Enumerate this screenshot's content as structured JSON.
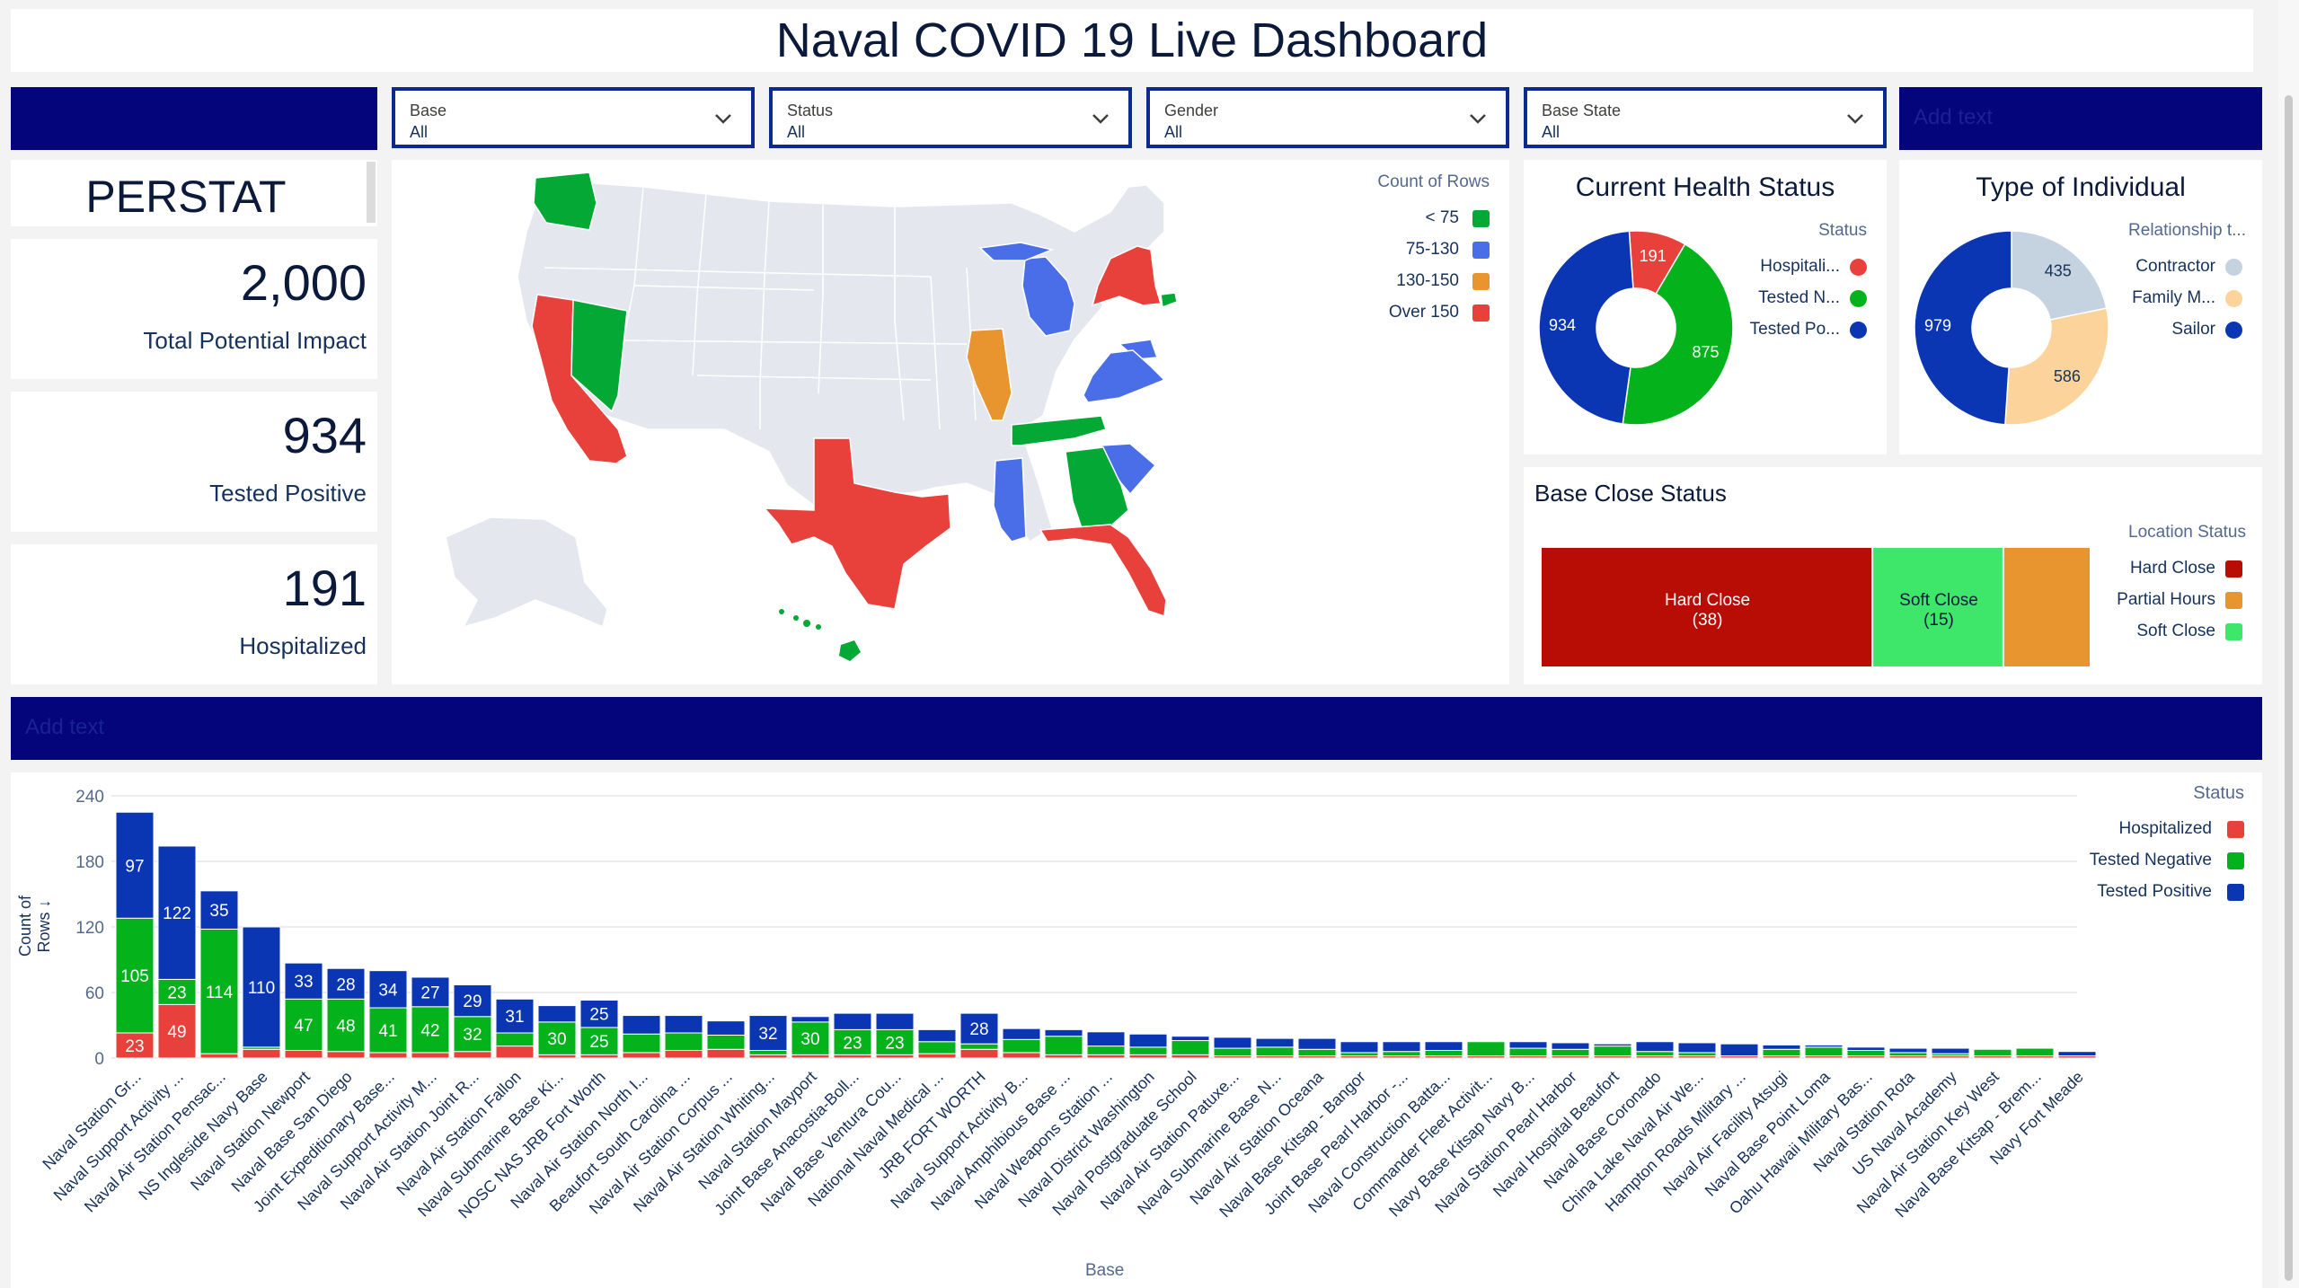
{
  "page": {
    "title": "Naval COVID 19 Live Dashboard"
  },
  "filters": [
    {
      "label": "Base",
      "value": "All"
    },
    {
      "label": "Status",
      "value": "All"
    },
    {
      "label": "Gender",
      "value": "All"
    },
    {
      "label": "Base State",
      "value": "All"
    }
  ],
  "banner_right_text": "Add text",
  "banner_mid_text": "Add text",
  "perstat": {
    "title": "PERSTAT"
  },
  "kpis": [
    {
      "value": "2,000",
      "label": "Total Potential Impact"
    },
    {
      "value": "934",
      "label": "Tested Positive"
    },
    {
      "value": "191",
      "label": "Hospitalized"
    }
  ],
  "map": {
    "legend_title": "Count of Rows",
    "legend": [
      {
        "label": "< 75",
        "color": "#04a935"
      },
      {
        "label": "75-130",
        "color": "#4a6ee8"
      },
      {
        "label": "130-150",
        "color": "#e8952f"
      },
      {
        "label": "Over 150",
        "color": "#e8413c"
      }
    ]
  },
  "health": {
    "title": "Current Health Status",
    "legend_title": "Status",
    "legend": [
      {
        "label": "Hospitali...",
        "color": "#e8413c"
      },
      {
        "label": "Tested N...",
        "color": "#04b31c"
      },
      {
        "label": "Tested Po...",
        "color": "#0a36b4"
      }
    ]
  },
  "individual": {
    "title": "Type of Individual",
    "legend_title": "Relationship t...",
    "legend": [
      {
        "label": "Contractor",
        "color": "#c5d2e0"
      },
      {
        "label": "Family M...",
        "color": "#fbd39b"
      },
      {
        "label": "Sailor",
        "color": "#0a36b4"
      }
    ]
  },
  "close": {
    "title": "Base Close Status",
    "legend_title": "Location Status",
    "legend": [
      {
        "label": "Hard Close",
        "color": "#b80d04"
      },
      {
        "label": "Partial Hours",
        "color": "#e8952f"
      },
      {
        "label": "Soft Close",
        "color": "#3ee66a"
      }
    ],
    "seg_labels": [
      {
        "name": "Hard Close",
        "count": "(38)"
      },
      {
        "name": "Soft Close",
        "count": "(15)"
      }
    ]
  },
  "bars": {
    "legend_title": "Status",
    "legend": [
      {
        "label": "Hospitalized",
        "color": "#e8413c"
      },
      {
        "label": "Tested Negative",
        "color": "#04b31c"
      },
      {
        "label": "Tested Positive",
        "color": "#0a36b4"
      }
    ],
    "y_label": "Count of Rows ↓",
    "x_label": "Base"
  },
  "chart_data": [
    {
      "type": "pie",
      "title": "Current Health Status",
      "categories": [
        "Hospitalized",
        "Tested Negative",
        "Tested Positive"
      ],
      "values": [
        191,
        875,
        934
      ],
      "colors": [
        "#e8413c",
        "#04b31c",
        "#0a36b4"
      ]
    },
    {
      "type": "pie",
      "title": "Type of Individual",
      "categories": [
        "Contractor",
        "Family Member",
        "Sailor"
      ],
      "values": [
        435,
        586,
        979
      ],
      "colors": [
        "#c5d2e0",
        "#fbd39b",
        "#0a36b4"
      ]
    },
    {
      "type": "bar",
      "title": "Base Close Status",
      "categories": [
        "Hard Close",
        "Soft Close",
        "Partial Hours"
      ],
      "values": [
        38,
        15,
        10
      ],
      "colors": [
        "#b80d04",
        "#3ee66a",
        "#e8952f"
      ]
    },
    {
      "type": "bar",
      "stacked": true,
      "title": "",
      "xlabel": "Base",
      "ylabel": "Count of Rows",
      "ylim": [
        0,
        240
      ],
      "yticks": [
        0,
        60,
        120,
        180,
        240
      ],
      "categories": [
        "Naval Station Gr...",
        "Naval Support Activity ...",
        "Naval Air Station Pensac...",
        "NS Ingleside Navy Base",
        "Naval Station Newport",
        "Naval Base San Diego",
        "Joint Expeditionary Base...",
        "Naval Support Activity M...",
        "Naval Air Station Joint R...",
        "Naval Air Station Fallon",
        "Naval Submarine Base Ki...",
        "NOSC NAS JRB Fort Worth",
        "Naval Air Station North I...",
        "Beaufort South Carolina ...",
        "Naval Air Station Corpus ...",
        "Naval Air Station Whiting...",
        "Naval Station Mayport",
        "Joint Base Anacostia-Boll...",
        "Naval Base Ventura Cou...",
        "National Naval Medical ...",
        "JRB FORT WORTH",
        "Naval Support Activity B...",
        "Naval Amphibious Base ...",
        "Naval Weapons Station ...",
        "Naval District Washington",
        "Naval Postgraduate School",
        "Naval Air Station Patuxe...",
        "Naval Submarine Base N...",
        "Naval Air Station Oceana",
        "Naval Base Kitsap - Bangor",
        "Joint Base Pearl Harbor -...",
        "Naval Construction Batta...",
        "Commander Fleet Activit...",
        "Navy Base Kitsap Navy B...",
        "Naval Station Pearl Harbor",
        "Naval Hospital Beaufort",
        "Naval Base Coronado",
        "China Lake Naval Air We...",
        "Hampton Roads Military ...",
        "Naval Air Facility Atsugi",
        "Naval Base Point Loma",
        "Oahu Hawaii Military Bas...",
        "Naval Station Rota",
        "US Naval Academy",
        "Naval Air Station Key West",
        "Naval Base Kitsap - Brem...",
        "Navy Fort Meade"
      ],
      "series": [
        {
          "name": "Hospitalized",
          "values": [
            23,
            49,
            4,
            8,
            7,
            6,
            5,
            5,
            6,
            11,
            3,
            3,
            5,
            7,
            8,
            3,
            3,
            3,
            3,
            4,
            8,
            5,
            3,
            3,
            3,
            3,
            2,
            2,
            2,
            2,
            2,
            2,
            2,
            2,
            2,
            2,
            2,
            2,
            2,
            2,
            2,
            2,
            2,
            2,
            2,
            2,
            2
          ]
        },
        {
          "name": "Tested Negative",
          "values": [
            105,
            23,
            114,
            2,
            47,
            48,
            41,
            42,
            32,
            12,
            30,
            25,
            17,
            16,
            13,
            4,
            30,
            23,
            23,
            11,
            5,
            12,
            17,
            8,
            7,
            13,
            7,
            8,
            6,
            3,
            4,
            5,
            13,
            7,
            6,
            9,
            4,
            3,
            0,
            6,
            8,
            5,
            3,
            2,
            6,
            7,
            0
          ]
        },
        {
          "name": "Tested Positive",
          "values": [
            97,
            122,
            35,
            110,
            33,
            28,
            34,
            27,
            29,
            31,
            15,
            25,
            17,
            16,
            13,
            32,
            5,
            15,
            15,
            11,
            28,
            10,
            6,
            13,
            12,
            4,
            10,
            8,
            10,
            10,
            9,
            8,
            0,
            6,
            6,
            2,
            9,
            9,
            11,
            4,
            2,
            3,
            4,
            5,
            0,
            0,
            4
          ]
        }
      ]
    }
  ]
}
